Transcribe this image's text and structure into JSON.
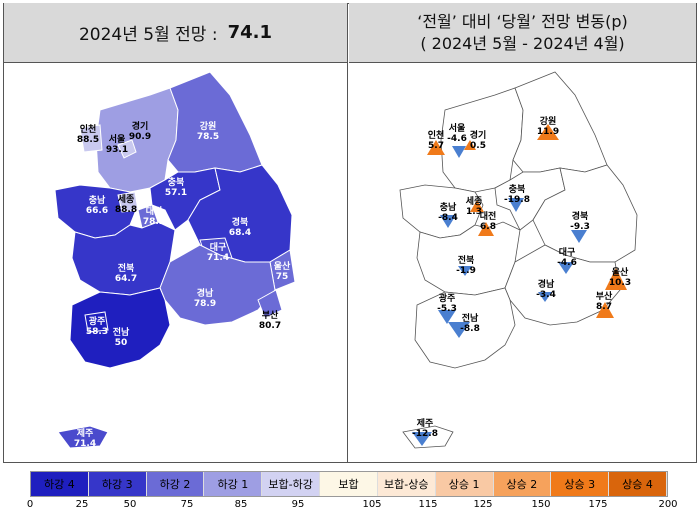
{
  "left_header": {
    "title": "2024년 5월 전망 :",
    "value": "74.1"
  },
  "right_header": {
    "line1": "‘전월’ 대비 ‘당월’ 전망 변동(p)",
    "line2": "( 2024년 5월 -  2024년 4월)"
  },
  "left_regions": [
    {
      "name": "인천",
      "value": "88.5"
    },
    {
      "name": "서울",
      "value": "93.1"
    },
    {
      "name": "경기",
      "value": "90.9"
    },
    {
      "name": "강원",
      "value": "78.5"
    },
    {
      "name": "충북",
      "value": "57.1"
    },
    {
      "name": "충남",
      "value": "66.6"
    },
    {
      "name": "세종",
      "value": "88.8"
    },
    {
      "name": "대전",
      "value": "78.2"
    },
    {
      "name": "경북",
      "value": "68.4"
    },
    {
      "name": "대구",
      "value": "71.4"
    },
    {
      "name": "전북",
      "value": "64.7"
    },
    {
      "name": "울산",
      "value": "75"
    },
    {
      "name": "경남",
      "value": "78.9"
    },
    {
      "name": "부산",
      "value": "80.7"
    },
    {
      "name": "광주",
      "value": "58.3"
    },
    {
      "name": "전남",
      "value": "50"
    },
    {
      "name": "제주",
      "value": "71.4"
    }
  ],
  "right_regions": [
    {
      "name": "인천",
      "value": "5.7"
    },
    {
      "name": "서울",
      "value": "-4.6"
    },
    {
      "name": "경기",
      "value": "0.5"
    },
    {
      "name": "강원",
      "value": "11.9"
    },
    {
      "name": "충북",
      "value": "-19.8"
    },
    {
      "name": "충남",
      "value": "-8.4"
    },
    {
      "name": "세종",
      "value": "1.3"
    },
    {
      "name": "대전",
      "value": "6.8"
    },
    {
      "name": "경북",
      "value": "-9.3"
    },
    {
      "name": "대구",
      "value": "-4.6"
    },
    {
      "name": "전북",
      "value": "-1.9"
    },
    {
      "name": "울산",
      "value": "10.3"
    },
    {
      "name": "경남",
      "value": "-3.4"
    },
    {
      "name": "부산",
      "value": "8.7"
    },
    {
      "name": "광주",
      "value": "-5.3"
    },
    {
      "name": "전남",
      "value": "-8.8"
    },
    {
      "name": "제주",
      "value": "-12.8"
    }
  ],
  "legend": [
    {
      "label": "하강 4",
      "color": "#1f1fbf"
    },
    {
      "label": "하강 3",
      "color": "#3636c9"
    },
    {
      "label": "하강 2",
      "color": "#6b6bd6"
    },
    {
      "label": "하강 1",
      "color": "#9e9ee3"
    },
    {
      "label": "보합-하강",
      "color": "#d2d2f2"
    },
    {
      "label": "보합",
      "color": "#fdf7e6"
    },
    {
      "label": "보합-상승",
      "color": "#fde9d6"
    },
    {
      "label": "상승 1",
      "color": "#f9c9a4"
    },
    {
      "label": "상승 2",
      "color": "#f6a25c"
    },
    {
      "label": "상승 3",
      "color": "#f07a1a"
    },
    {
      "label": "상승 4",
      "color": "#d9650c"
    }
  ],
  "ticks": [
    "0",
    "25",
    "50",
    "75",
    "85",
    "95",
    "105",
    "115",
    "125",
    "150",
    "175",
    "200"
  ]
}
